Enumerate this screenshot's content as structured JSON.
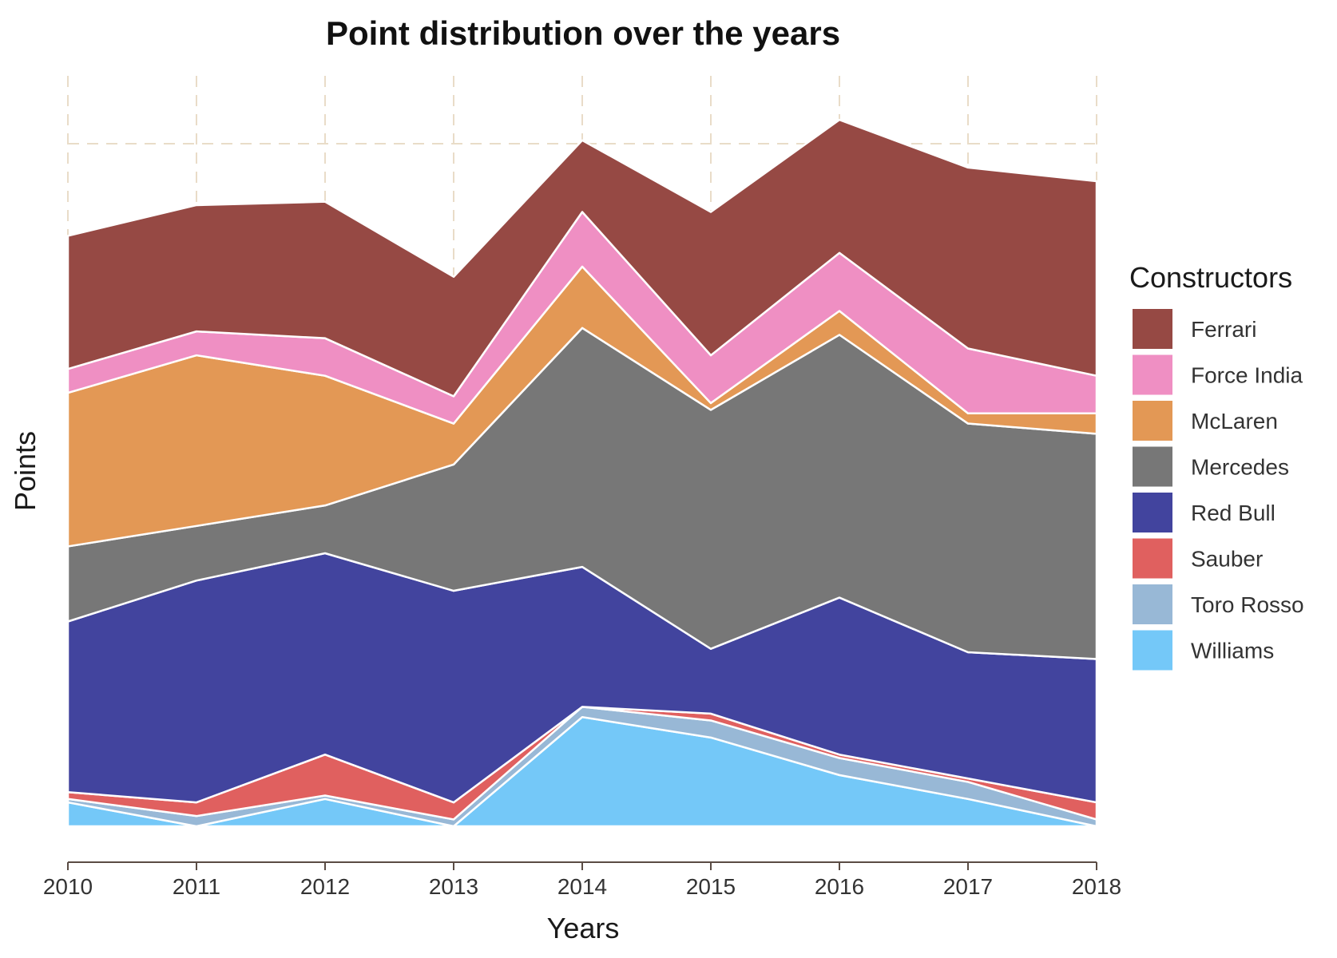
{
  "chart_data": {
    "type": "area",
    "stacked": true,
    "title": "Point distribution over the years",
    "xlabel": "Years",
    "ylabel": "Points",
    "y_tick_labels": false,
    "ylim": [
      0,
      1050
    ],
    "grid": "dashed",
    "legend": {
      "title": "Constructors",
      "position": "right"
    },
    "x": [
      "2010",
      "2011",
      "2012",
      "2013",
      "2014",
      "2015",
      "2016",
      "2017",
      "2018"
    ],
    "series": [
      {
        "name": "Williams",
        "color": "#74c8f8",
        "values": [
          35,
          0,
          40,
          0,
          160,
          130,
          75,
          40,
          0
        ]
      },
      {
        "name": "Toro Rosso",
        "color": "#98b8d6",
        "values": [
          5,
          15,
          5,
          10,
          15,
          25,
          25,
          25,
          10
        ]
      },
      {
        "name": "Sauber",
        "color": "#e0605f",
        "values": [
          10,
          20,
          60,
          25,
          0,
          10,
          5,
          5,
          25
        ]
      },
      {
        "name": "Red Bull",
        "color": "#42449e",
        "values": [
          250,
          325,
          295,
          310,
          205,
          95,
          230,
          185,
          210
        ]
      },
      {
        "name": "Mercedes",
        "color": "#777777",
        "values": [
          110,
          80,
          70,
          185,
          350,
          350,
          385,
          335,
          330
        ]
      },
      {
        "name": "McLaren",
        "color": "#e39855",
        "values": [
          225,
          250,
          190,
          60,
          90,
          10,
          35,
          15,
          30
        ]
      },
      {
        "name": "Force India",
        "color": "#ef8fc3",
        "values": [
          35,
          35,
          55,
          40,
          80,
          70,
          85,
          95,
          55
        ]
      },
      {
        "name": "Ferrari",
        "color": "#964944",
        "values": [
          195,
          185,
          200,
          175,
          105,
          210,
          195,
          265,
          285
        ]
      }
    ],
    "legend_order": [
      "Ferrari",
      "Force India",
      "McLaren",
      "Mercedes",
      "Red Bull",
      "Sauber",
      "Toro Rosso",
      "Williams"
    ]
  }
}
